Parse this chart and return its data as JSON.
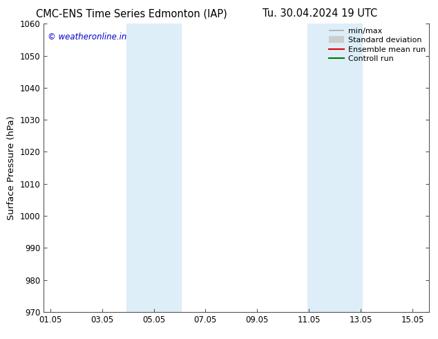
{
  "title_left": "CMC-ENS Time Series Edmonton (IAP)",
  "title_right": "Tu. 30.04.2024 19 UTC",
  "ylabel": "Surface Pressure (hPa)",
  "xlabel": "",
  "ylim": [
    970,
    1060
  ],
  "yticks": [
    970,
    980,
    990,
    1000,
    1010,
    1020,
    1030,
    1040,
    1050,
    1060
  ],
  "xlim_start": 0.8,
  "xlim_end": 15.7,
  "xticks": [
    1.05,
    3.05,
    5.05,
    7.05,
    9.05,
    11.05,
    13.05,
    15.05
  ],
  "xtick_labels": [
    "01.05",
    "03.05",
    "05.05",
    "07.05",
    "09.05",
    "11.05",
    "13.05",
    "15.05"
  ],
  "shaded_bands": [
    {
      "x_start": 4.0,
      "x_end": 6.1
    },
    {
      "x_start": 11.0,
      "x_end": 13.1
    }
  ],
  "band_color": "#ddeef8",
  "watermark_text": "© weatheronline.in",
  "watermark_color": "#0000cc",
  "legend_entries": [
    {
      "label": "min/max",
      "color": "#aaaaaa",
      "linestyle": "-",
      "linewidth": 1.2
    },
    {
      "label": "Standard deviation",
      "color": "#cccccc",
      "linestyle": "-",
      "linewidth": 7
    },
    {
      "label": "Ensemble mean run",
      "color": "#dd0000",
      "linestyle": "-",
      "linewidth": 1.5
    },
    {
      "label": "Controll run",
      "color": "#007700",
      "linestyle": "-",
      "linewidth": 1.5
    }
  ],
  "background_color": "#ffffff",
  "tick_color": "#555555",
  "spine_color": "#555555",
  "title_fontsize": 10.5,
  "tick_fontsize": 8.5,
  "ylabel_fontsize": 9.5,
  "legend_fontsize": 8
}
